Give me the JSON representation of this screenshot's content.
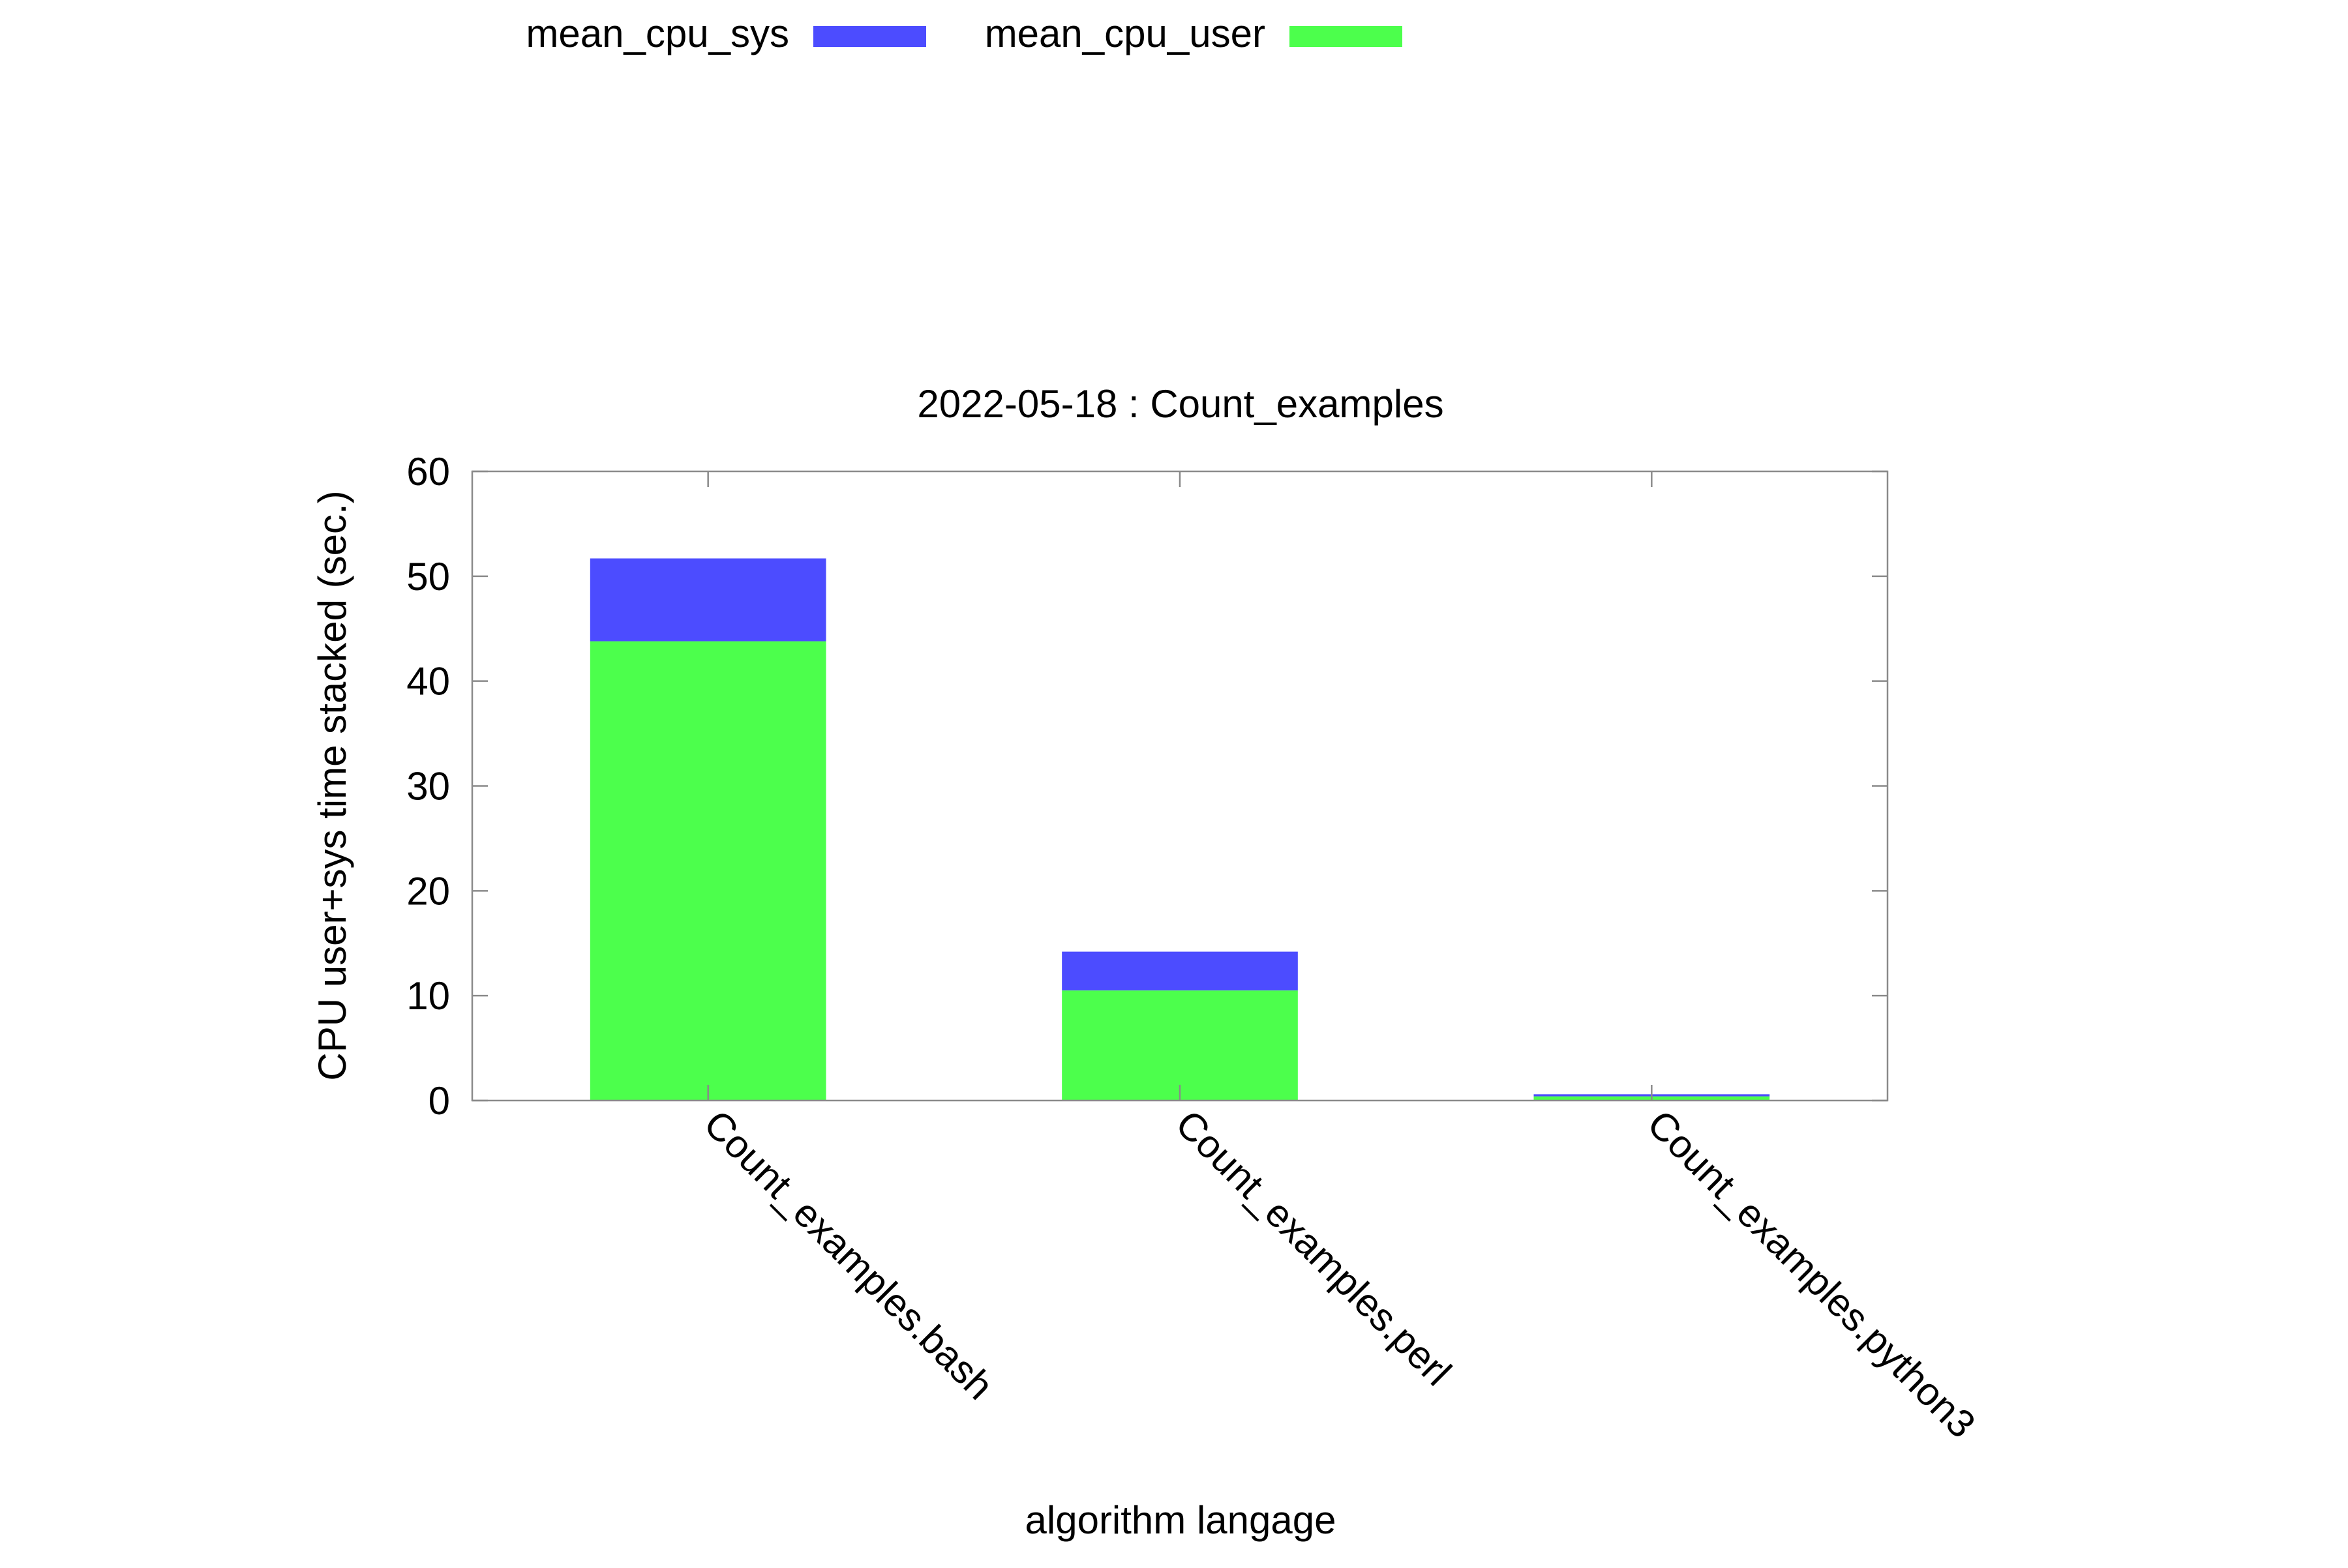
{
  "chart_data": {
    "type": "bar",
    "stacked": true,
    "title": "2022-05-18 : Count_examples",
    "xlabel": "algorithm langage",
    "ylabel": "CPU user+sys time stacked (sec.)",
    "categories": [
      "Count_examples.bash",
      "Count_examples.perl",
      "Count_examples.python3"
    ],
    "series": [
      {
        "name": "mean_cpu_user",
        "color": "#4cff4c",
        "values": [
          43.8,
          10.5,
          0.4
        ]
      },
      {
        "name": "mean_cpu_sys",
        "color": "#4c4cff",
        "values": [
          7.9,
          3.7,
          0.2
        ]
      }
    ],
    "legend_order": [
      "mean_cpu_sys",
      "mean_cpu_user"
    ],
    "legend_position": "top",
    "ylim": [
      0,
      60
    ],
    "yticks": [
      0,
      10,
      20,
      30,
      40,
      50,
      60
    ],
    "grid": false
  }
}
